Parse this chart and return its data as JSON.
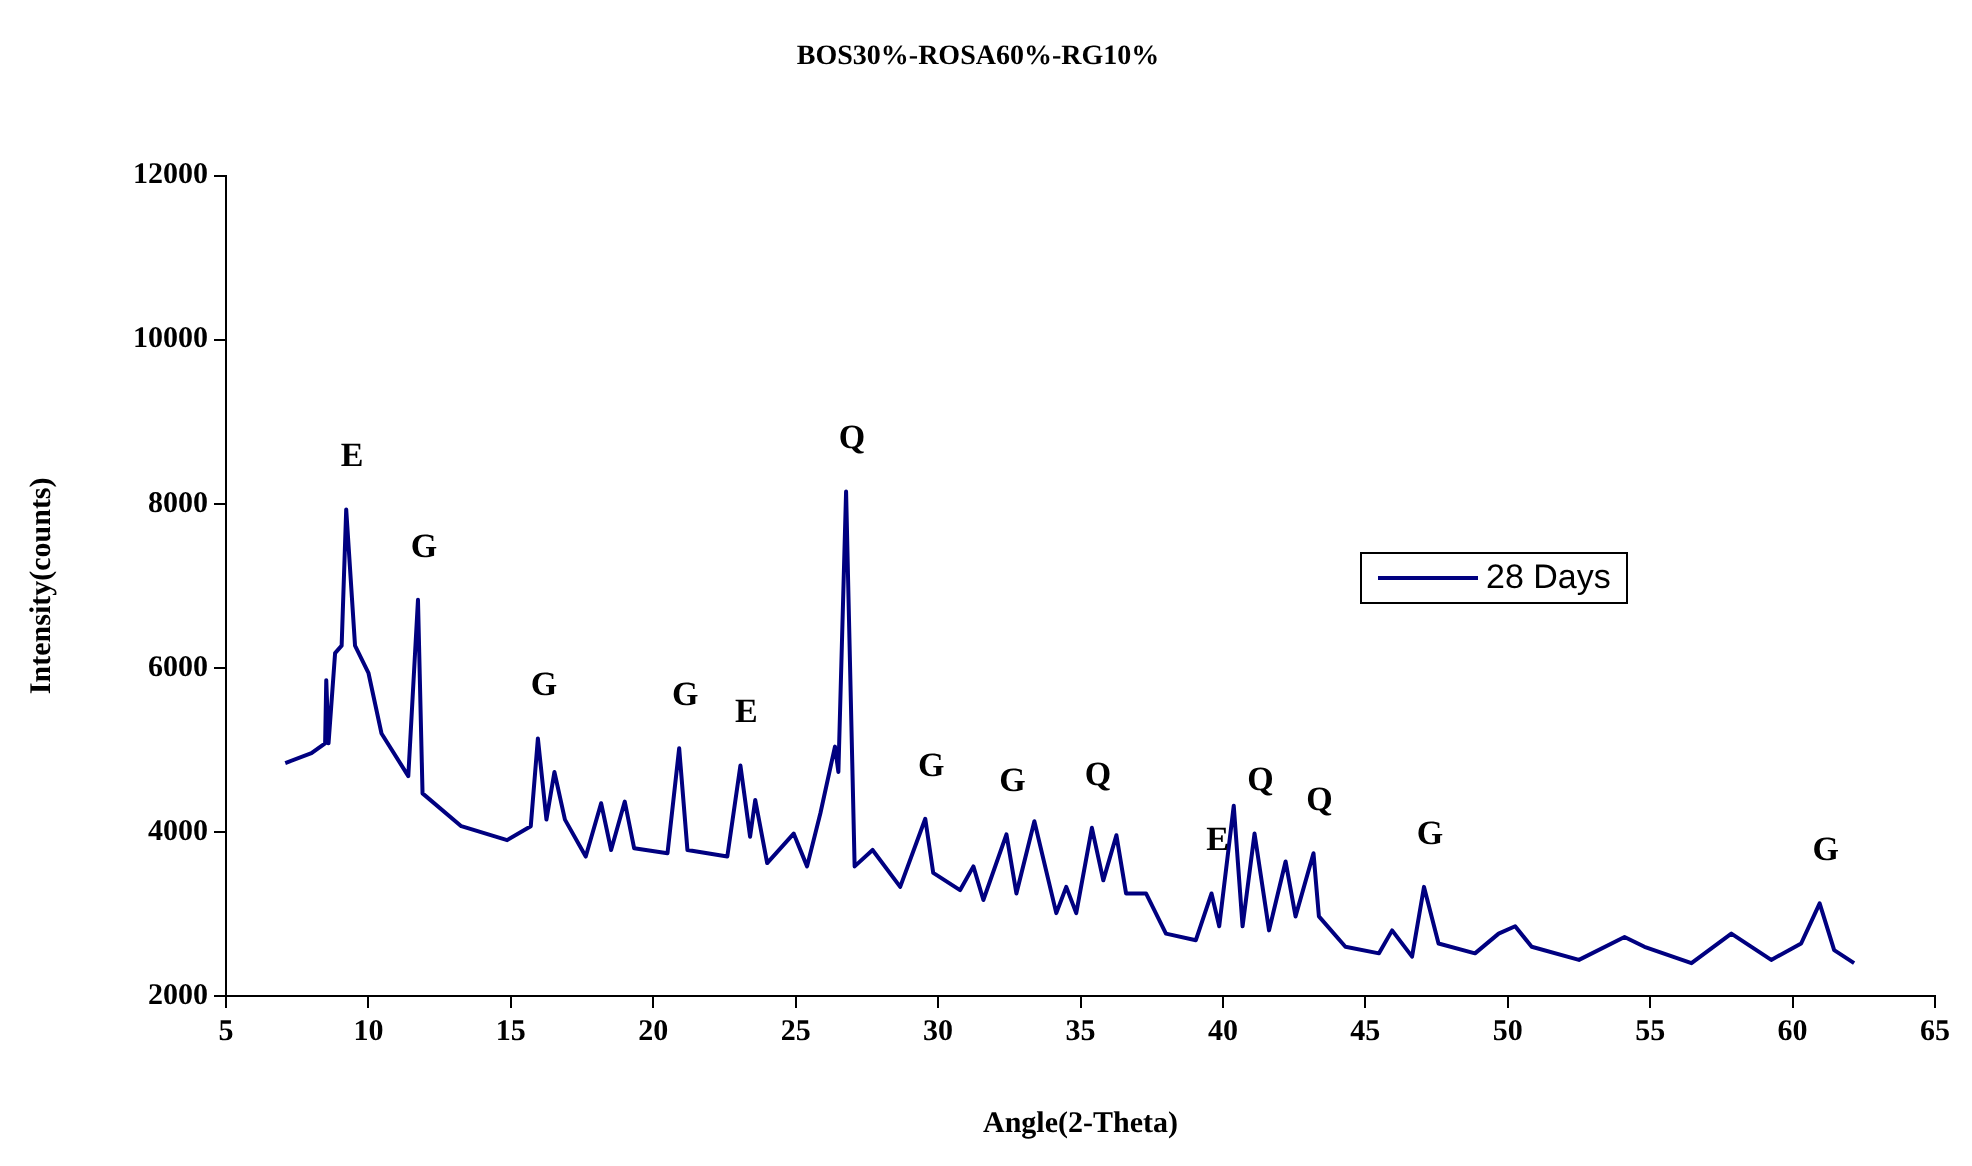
{
  "chart_data": {
    "type": "line",
    "title": "BOS30%-ROSA60%-RG10%",
    "xlabel": "Angle(2-Theta)",
    "ylabel": "Intensity(counts)",
    "xlim": [
      5,
      65
    ],
    "xticks": [
      5,
      10,
      15,
      20,
      25,
      30,
      35,
      40,
      45,
      50,
      55,
      60,
      65
    ],
    "ylim": [
      2000,
      12000
    ],
    "yticks": [
      2000,
      4000,
      6000,
      8000,
      10000,
      12000
    ],
    "grid": false,
    "legend": "right",
    "series": [
      {
        "name": "28 Days",
        "color": "#000080",
        "x": [
          7.08,
          8.0,
          8.48,
          8.52,
          8.6,
          8.83,
          9.06,
          9.22,
          9.53,
          10.0,
          10.46,
          11.4,
          11.74,
          11.9,
          13.26,
          14.87,
          15.7,
          15.95,
          16.25,
          16.53,
          16.9,
          17.63,
          18.17,
          18.52,
          19.0,
          19.33,
          20.5,
          20.91,
          21.2,
          22.6,
          23.06,
          23.4,
          23.58,
          24.0,
          24.93,
          25.4,
          25.87,
          26.38,
          26.5,
          26.77,
          27.07,
          27.7,
          28.67,
          29.55,
          29.83,
          30.77,
          31.24,
          31.59,
          32.4,
          32.75,
          33.38,
          34.15,
          34.5,
          34.85,
          35.4,
          35.8,
          36.26,
          36.6,
          37.3,
          38.0,
          39.05,
          39.6,
          39.87,
          40.38,
          40.69,
          41.11,
          41.62,
          42.2,
          42.55,
          43.18,
          43.37,
          44.3,
          45.48,
          45.94,
          46.64,
          47.06,
          47.57,
          48.85,
          49.68,
          50.26,
          50.84,
          52.5,
          54.1,
          54.8,
          56.45,
          57.85,
          59.25,
          60.3,
          60.95,
          61.46,
          62.16
        ],
        "values": [
          4840,
          4960,
          5080,
          5850,
          5080,
          6180,
          6270,
          7930,
          6270,
          5940,
          5200,
          4680,
          6830,
          4470,
          4070,
          3900,
          4070,
          5140,
          4150,
          4730,
          4150,
          3700,
          4350,
          3780,
          4370,
          3800,
          3740,
          5020,
          3780,
          3700,
          4810,
          3940,
          4390,
          3620,
          3980,
          3580,
          4230,
          5040,
          4730,
          8150,
          3580,
          3780,
          3330,
          4160,
          3500,
          3290,
          3580,
          3170,
          3970,
          3250,
          4130,
          3010,
          3330,
          3010,
          4050,
          3410,
          3960,
          3250,
          3250,
          2760,
          2680,
          3250,
          2850,
          4320,
          2850,
          3980,
          2800,
          3640,
          2970,
          3740,
          2970,
          2600,
          2520,
          2800,
          2480,
          3330,
          2640,
          2520,
          2760,
          2850,
          2600,
          2440,
          2720,
          2600,
          2400,
          2760,
          2440,
          2640,
          3130,
          2560,
          2400
        ]
      }
    ],
    "annotations": [
      {
        "text": "E",
        "x": 9.22,
        "y": 7930
      },
      {
        "text": "G",
        "x": 11.74,
        "y": 6830
      },
      {
        "text": "G",
        "x": 15.95,
        "y": 5140
      },
      {
        "text": "G",
        "x": 20.91,
        "y": 5020
      },
      {
        "text": "E",
        "x": 23.06,
        "y": 4810
      },
      {
        "text": "Q",
        "x": 26.77,
        "y": 8150
      },
      {
        "text": "G",
        "x": 29.55,
        "y": 4160
      },
      {
        "text": "G",
        "x": 32.4,
        "y": 3970
      },
      {
        "text": "Q",
        "x": 35.4,
        "y": 4050
      },
      {
        "text": "E",
        "x": 39.6,
        "y": 3250
      },
      {
        "text": "Q",
        "x": 41.11,
        "y": 3980
      },
      {
        "text": "Q",
        "x": 43.18,
        "y": 3740
      },
      {
        "text": "G",
        "x": 47.06,
        "y": 3330
      },
      {
        "text": "G",
        "x": 60.95,
        "y": 3130
      }
    ]
  }
}
